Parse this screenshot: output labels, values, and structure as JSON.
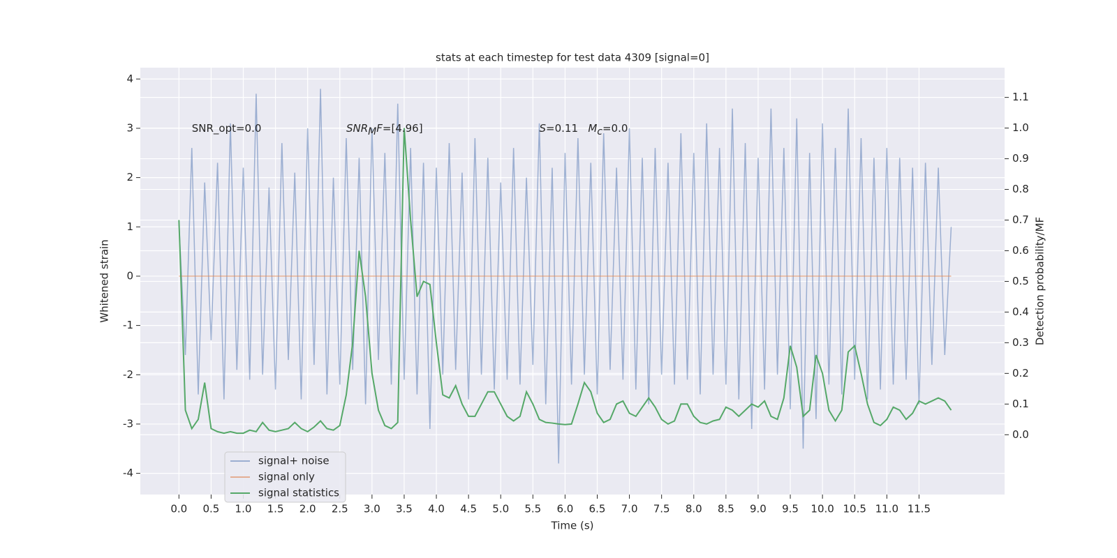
{
  "chart_data": {
    "type": "line",
    "title": "stats at each timestep for test data 4309 [signal=0]",
    "xlabel": "Time (s)",
    "ylabel": "Whitened strain",
    "y2label": "Detection probability/MF",
    "xlim": [
      -0.6,
      12.83
    ],
    "ylim": [
      -4.43,
      4.23
    ],
    "y2lim": [
      -0.195,
      1.197
    ],
    "xticks": [
      {
        "value": 0,
        "label": "0.0"
      },
      {
        "value": 0.5,
        "label": "0.5"
      },
      {
        "value": 1,
        "label": "1.0"
      },
      {
        "value": 1.5,
        "label": "1.5"
      },
      {
        "value": 2,
        "label": "2.0"
      },
      {
        "value": 2.5,
        "label": "2.5"
      },
      {
        "value": 3,
        "label": "3.0"
      },
      {
        "value": 3.5,
        "label": "3.5"
      },
      {
        "value": 4,
        "label": "4.0"
      },
      {
        "value": 4.5,
        "label": "4.5"
      },
      {
        "value": 5,
        "label": "5.0"
      },
      {
        "value": 5.5,
        "label": "5.5"
      },
      {
        "value": 6,
        "label": "6.0"
      },
      {
        "value": 6.5,
        "label": "6.5"
      },
      {
        "value": 7,
        "label": "7.0"
      },
      {
        "value": 7.5,
        "label": "7.5"
      },
      {
        "value": 8,
        "label": "8.0"
      },
      {
        "value": 8.5,
        "label": "8.5"
      },
      {
        "value": 9,
        "label": "9.0"
      },
      {
        "value": 9.5,
        "label": "9.5"
      },
      {
        "value": 10,
        "label": "10.0"
      },
      {
        "value": 10.5,
        "label": "10.5"
      },
      {
        "value": 11,
        "label": "11.0"
      },
      {
        "value": 11.5,
        "label": "11.5"
      }
    ],
    "yticks": [
      -4,
      -3,
      -2,
      -1,
      0,
      1,
      2,
      3,
      4
    ],
    "y2ticks": [
      {
        "value": 0,
        "label": "0.0"
      },
      {
        "value": 0.1,
        "label": "0.1"
      },
      {
        "value": 0.2,
        "label": "0.2"
      },
      {
        "value": 0.3,
        "label": "0.3"
      },
      {
        "value": 0.4,
        "label": "0.4"
      },
      {
        "value": 0.5,
        "label": "0.5"
      },
      {
        "value": 0.6,
        "label": "0.6"
      },
      {
        "value": 0.7,
        "label": "0.7"
      },
      {
        "value": 0.8,
        "label": "0.8"
      },
      {
        "value": 0.9,
        "label": "0.9"
      },
      {
        "value": 1,
        "label": "1.0"
      },
      {
        "value": 1.1,
        "label": "1.1"
      }
    ],
    "grid": true,
    "legend": "lower left",
    "annotations": [
      {
        "parts": [
          {
            "text": "SNR_opt=0.0"
          }
        ]
      },
      {
        "parts": [
          {
            "text": "SNR",
            "italic": true
          },
          {
            "text": "M",
            "italic": true,
            "sub": true
          },
          {
            "text": "F",
            "italic": true
          },
          {
            "text": "=[4.96]"
          }
        ]
      },
      {
        "parts": [
          {
            "text": "S",
            "italic": true
          },
          {
            "text": "=0.11   "
          },
          {
            "text": "M",
            "italic": true
          },
          {
            "text": "c",
            "italic": true,
            "sub": true
          },
          {
            "text": "=0.0"
          }
        ]
      }
    ],
    "series": [
      {
        "name": "signal+ noise",
        "color": "#4c72b0",
        "opacity": 0.5,
        "x": [
          0,
          0.1,
          0.2,
          0.3,
          0.4,
          0.5,
          0.6,
          0.7,
          0.8,
          0.9,
          1,
          1.1,
          1.2,
          1.3,
          1.4,
          1.5,
          1.6,
          1.7,
          1.8,
          1.9,
          2,
          2.1,
          2.2,
          2.3,
          2.4,
          2.5,
          2.6,
          2.7,
          2.8,
          2.9,
          3,
          3.1,
          3.2,
          3.3,
          3.4,
          3.5,
          3.6,
          3.7,
          3.8,
          3.9,
          4,
          4.1,
          4.2,
          4.3,
          4.4,
          4.5,
          4.6,
          4.7,
          4.8,
          4.9,
          5,
          5.1,
          5.2,
          5.3,
          5.4,
          5.5,
          5.6,
          5.7,
          5.8,
          5.9,
          6,
          6.1,
          6.2,
          6.3,
          6.4,
          6.5,
          6.6,
          6.7,
          6.8,
          6.9,
          7,
          7.1,
          7.2,
          7.3,
          7.4,
          7.5,
          7.6,
          7.7,
          7.8,
          7.9,
          8,
          8.1,
          8.2,
          8.3,
          8.4,
          8.5,
          8.6,
          8.7,
          8.8,
          8.9,
          9,
          9.1,
          9.2,
          9.3,
          9.4,
          9.5,
          9.6,
          9.7,
          9.8,
          9.9,
          10,
          10.1,
          10.2,
          10.3,
          10.4,
          10.5,
          10.6,
          10.7,
          10.8,
          10.9,
          11,
          11.1,
          11.2,
          11.3,
          11.4,
          11.5,
          11.6,
          11.7,
          11.8,
          11.9,
          12
        ],
        "values": [
          1.1,
          -1.6,
          2.6,
          -2.4,
          1.9,
          -1.3,
          2.3,
          -2.5,
          3.1,
          -1.9,
          2.2,
          -2.1,
          3.7,
          -2.0,
          1.8,
          -2.3,
          2.7,
          -1.7,
          2.1,
          -2.5,
          3.0,
          -1.8,
          3.8,
          -2.4,
          2.0,
          -2.2,
          2.8,
          -1.9,
          2.4,
          -2.6,
          3.0,
          -1.7,
          2.5,
          -2.2,
          3.5,
          -2.1,
          2.6,
          -2.4,
          2.3,
          -3.1,
          2.2,
          -2.0,
          2.7,
          -1.9,
          2.1,
          -2.5,
          2.8,
          -2.0,
          2.4,
          -2.3,
          1.9,
          -2.1,
          2.6,
          -2.2,
          2.0,
          -1.8,
          3.1,
          -2.6,
          2.2,
          -3.8,
          2.5,
          -2.2,
          2.8,
          -2.0,
          2.3,
          -2.4,
          2.9,
          -1.9,
          2.2,
          -2.1,
          3.0,
          -2.3,
          2.4,
          -2.6,
          2.6,
          -2.0,
          2.3,
          -2.2,
          2.9,
          -2.1,
          2.5,
          -2.4,
          3.1,
          -2.0,
          2.6,
          -2.2,
          3.4,
          -2.5,
          2.7,
          -3.1,
          2.4,
          -2.3,
          3.4,
          -2.0,
          2.6,
          -2.7,
          3.2,
          -3.5,
          2.5,
          -2.9,
          3.1,
          -2.2,
          2.6,
          -2.4,
          3.4,
          -2.1,
          2.8,
          -2.5,
          2.4,
          -2.3,
          2.6,
          -2.2,
          2.4,
          -2.1,
          2.2,
          -2.6,
          2.3,
          -1.8,
          2.2,
          -1.6,
          1.0
        ]
      },
      {
        "name": "signal only",
        "color": "#dd8452",
        "opacity": 0.6,
        "x": [
          0,
          12
        ],
        "values": [
          0,
          0
        ]
      },
      {
        "name": "signal statistics",
        "color": "#55a868",
        "opacity": 1,
        "axis": "y2",
        "x": [
          0,
          0.1,
          0.2,
          0.3,
          0.4,
          0.5,
          0.6,
          0.7,
          0.8,
          0.9,
          1,
          1.1,
          1.2,
          1.3,
          1.4,
          1.5,
          1.6,
          1.7,
          1.8,
          1.9,
          2,
          2.1,
          2.2,
          2.3,
          2.4,
          2.5,
          2.6,
          2.7,
          2.8,
          2.9,
          3,
          3.1,
          3.2,
          3.3,
          3.4,
          3.5,
          3.6,
          3.7,
          3.8,
          3.9,
          4,
          4.1,
          4.2,
          4.3,
          4.4,
          4.5,
          4.6,
          4.7,
          4.8,
          4.9,
          5,
          5.1,
          5.2,
          5.3,
          5.4,
          5.5,
          5.6,
          5.7,
          5.8,
          5.9,
          6,
          6.1,
          6.2,
          6.3,
          6.4,
          6.5,
          6.6,
          6.7,
          6.8,
          6.9,
          7,
          7.1,
          7.2,
          7.3,
          7.4,
          7.5,
          7.6,
          7.7,
          7.8,
          7.9,
          8,
          8.1,
          8.2,
          8.3,
          8.4,
          8.5,
          8.6,
          8.7,
          8.8,
          8.9,
          9,
          9.1,
          9.2,
          9.3,
          9.4,
          9.5,
          9.6,
          9.7,
          9.8,
          9.9,
          10,
          10.1,
          10.2,
          10.3,
          10.4,
          10.5,
          10.6,
          10.7,
          10.8,
          10.9,
          11,
          11.1,
          11.2,
          11.3,
          11.4,
          11.5,
          11.6,
          11.7,
          11.8,
          11.9,
          12
        ],
        "values": [
          0.7,
          0.08,
          0.02,
          0.05,
          0.17,
          0.02,
          0.01,
          0.005,
          0.01,
          0.005,
          0.005,
          0.015,
          0.01,
          0.04,
          0.015,
          0.01,
          0.015,
          0.02,
          0.04,
          0.02,
          0.01,
          0.025,
          0.045,
          0.02,
          0.015,
          0.03,
          0.13,
          0.3,
          0.6,
          0.45,
          0.2,
          0.08,
          0.03,
          0.02,
          0.04,
          1.0,
          0.7,
          0.45,
          0.5,
          0.49,
          0.3,
          0.13,
          0.12,
          0.16,
          0.1,
          0.06,
          0.06,
          0.1,
          0.14,
          0.14,
          0.1,
          0.06,
          0.045,
          0.06,
          0.14,
          0.1,
          0.05,
          0.04,
          0.038,
          0.035,
          0.033,
          0.035,
          0.1,
          0.17,
          0.14,
          0.07,
          0.04,
          0.05,
          0.1,
          0.11,
          0.07,
          0.06,
          0.09,
          0.12,
          0.09,
          0.05,
          0.035,
          0.045,
          0.1,
          0.1,
          0.06,
          0.04,
          0.035,
          0.045,
          0.05,
          0.09,
          0.08,
          0.06,
          0.08,
          0.1,
          0.09,
          0.11,
          0.06,
          0.05,
          0.12,
          0.29,
          0.22,
          0.06,
          0.08,
          0.26,
          0.2,
          0.08,
          0.045,
          0.08,
          0.27,
          0.29,
          0.2,
          0.1,
          0.04,
          0.03,
          0.05,
          0.09,
          0.08,
          0.05,
          0.07,
          0.11,
          0.1,
          0.11,
          0.12,
          0.11,
          0.08
        ]
      }
    ]
  }
}
